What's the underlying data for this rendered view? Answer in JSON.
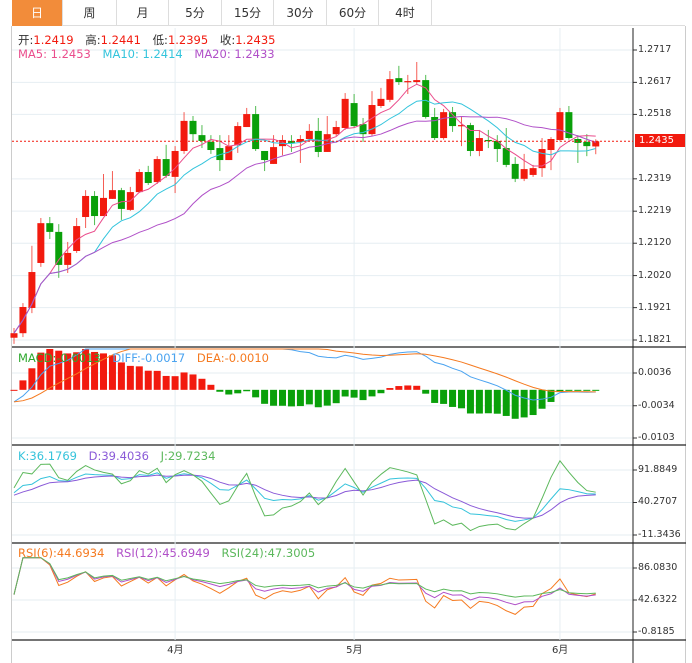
{
  "tabs": [
    {
      "label": "日",
      "active": true
    },
    {
      "label": "周"
    },
    {
      "label": "月"
    },
    {
      "label": "5分"
    },
    {
      "label": "15分"
    },
    {
      "label": "30分"
    },
    {
      "label": "60分"
    },
    {
      "label": "4时"
    }
  ],
  "ohlc_legend": {
    "open_label": "开:",
    "open": "1.2419",
    "high_label": "高:",
    "high": "1.2441",
    "low_label": "低:",
    "low": "1.2395",
    "close_label": "收:",
    "close": "1.2435"
  },
  "ma_legend": {
    "ma5": "MA5: 1.2453",
    "ma10": "MA10: 1.2414",
    "ma20": "MA20: 1.2433"
  },
  "macd_legend": {
    "macd": "MACD:-0.0013",
    "diff": "DIFF:-0.0017",
    "dea": "DEA:-0.0010"
  },
  "kdj_legend": {
    "k": "K:36.1769",
    "d": "D:39.4036",
    "j": "J:29.7234"
  },
  "rsi_legend": {
    "rsi6": "RSI(6):44.6934",
    "rsi12": "RSI(12):45.6949",
    "rsi24": "RSI(24):47.3005"
  },
  "last_price": "1.2435",
  "colors": {
    "up": "#f21a0e",
    "down": "#0aa00a",
    "ma5": "#ea4d8c",
    "ma10": "#33c4dc",
    "ma20": "#b050c8",
    "diff": "#4aa3f0",
    "dea": "#f57a20",
    "k": "#35c3db",
    "d": "#8a5ad8",
    "j": "#5cb85c",
    "rsi6": "#f57a20",
    "rsi12": "#b050c8",
    "rsi24": "#5cb85c",
    "active_tab": "#f28c3a"
  },
  "chart_data": {
    "type": "candlestick",
    "price_ticks": [
      "1.2717",
      "1.2617",
      "1.2518",
      "1.2319",
      "1.2219",
      "1.2120",
      "1.2020",
      "1.1921",
      "1.1821"
    ],
    "macd_ticks": [
      "0.0036",
      "-0.0034",
      "-0.0103"
    ],
    "kdj_ticks": [
      "91.8849",
      "40.2707",
      "-11.3436"
    ],
    "rsi_ticks": [
      "86.0830",
      "42.6322",
      "-0.8185"
    ],
    "x_labels": [
      {
        "label": "4月",
        "index": 18
      },
      {
        "label": "5月",
        "index": 38
      },
      {
        "label": "6月",
        "index": 61
      }
    ],
    "ylim": [
      1.1821,
      1.2717
    ],
    "candles": [
      [
        1.1828,
        1.1858,
        1.1809,
        1.1842
      ],
      [
        1.1842,
        1.1935,
        1.183,
        1.1923
      ],
      [
        1.192,
        1.2112,
        1.1904,
        1.2031
      ],
      [
        1.2059,
        1.2198,
        1.2047,
        1.2182
      ],
      [
        1.2182,
        1.2201,
        1.2133,
        1.2155
      ],
      [
        1.2155,
        1.2179,
        1.2013,
        1.2053
      ],
      [
        1.2053,
        1.2124,
        1.2028,
        1.209
      ],
      [
        1.2096,
        1.2198,
        1.209,
        1.2173
      ],
      [
        1.2201,
        1.2284,
        1.2167,
        1.2266
      ],
      [
        1.2266,
        1.2281,
        1.2176,
        1.2204
      ],
      [
        1.2204,
        1.2334,
        1.2204,
        1.226
      ],
      [
        1.2257,
        1.2343,
        1.2257,
        1.2284
      ],
      [
        1.2284,
        1.2291,
        1.2192,
        1.2226
      ],
      [
        1.2223,
        1.2294,
        1.222,
        1.2278
      ],
      [
        1.2278,
        1.2349,
        1.2275,
        1.234
      ],
      [
        1.234,
        1.2359,
        1.23,
        1.2306
      ],
      [
        1.2309,
        1.2389,
        1.2303,
        1.238
      ],
      [
        1.238,
        1.2424,
        1.2322,
        1.2328
      ],
      [
        1.2325,
        1.242,
        1.2275,
        1.2405
      ],
      [
        1.2405,
        1.2525,
        1.2396,
        1.2498
      ],
      [
        1.2498,
        1.2513,
        1.2433,
        1.2457
      ],
      [
        1.2454,
        1.2485,
        1.2414,
        1.2436
      ],
      [
        1.2433,
        1.2454,
        1.2396,
        1.2408
      ],
      [
        1.2414,
        1.2454,
        1.2343,
        1.2377
      ],
      [
        1.2377,
        1.2454,
        1.2377,
        1.242
      ],
      [
        1.2423,
        1.2494,
        1.2399,
        1.2482
      ],
      [
        1.2479,
        1.2538,
        1.2479,
        1.2519
      ],
      [
        1.2519,
        1.2544,
        1.2405,
        1.2411
      ],
      [
        1.2405,
        1.2405,
        1.2343,
        1.2377
      ],
      [
        1.2365,
        1.2454,
        1.2365,
        1.2417
      ],
      [
        1.242,
        1.2454,
        1.2392,
        1.2439
      ],
      [
        1.2436,
        1.2454,
        1.2402,
        1.243
      ],
      [
        1.2433,
        1.2454,
        1.2368,
        1.2442
      ],
      [
        1.2442,
        1.2488,
        1.2436,
        1.2467
      ],
      [
        1.2467,
        1.2507,
        1.2386,
        1.2402
      ],
      [
        1.2402,
        1.2513,
        1.2402,
        1.2457
      ],
      [
        1.2457,
        1.2498,
        1.2451,
        1.2479
      ],
      [
        1.2476,
        1.2584,
        1.247,
        1.2566
      ],
      [
        1.2553,
        1.2581,
        1.2476,
        1.2482
      ],
      [
        1.2488,
        1.2507,
        1.2433,
        1.2457
      ],
      [
        1.2457,
        1.259,
        1.2451,
        1.2547
      ],
      [
        1.2544,
        1.26,
        1.2538,
        1.2566
      ],
      [
        1.2563,
        1.2652,
        1.2556,
        1.2627
      ],
      [
        1.263,
        1.2668,
        1.2609,
        1.2618
      ],
      [
        1.2618,
        1.264,
        1.2581,
        1.2621
      ],
      [
        1.2618,
        1.268,
        1.2612,
        1.2624
      ],
      [
        1.2624,
        1.264,
        1.2505,
        1.251
      ],
      [
        1.251,
        1.2538,
        1.2439,
        1.2445
      ],
      [
        1.2445,
        1.2535,
        1.244,
        1.2525
      ],
      [
        1.2525,
        1.2541,
        1.2464,
        1.2482
      ],
      [
        1.2482,
        1.251,
        1.242,
        1.2485
      ],
      [
        1.2485,
        1.2492,
        1.2389,
        1.2405
      ],
      [
        1.2405,
        1.247,
        1.2389,
        1.2445
      ],
      [
        1.2439,
        1.247,
        1.2414,
        1.2436
      ],
      [
        1.2436,
        1.2454,
        1.2371,
        1.2411
      ],
      [
        1.2414,
        1.2476,
        1.2355,
        1.2362
      ],
      [
        1.2365,
        1.2386,
        1.2309,
        1.2319
      ],
      [
        1.2319,
        1.2396,
        1.2312,
        1.2349
      ],
      [
        1.2331,
        1.2362,
        1.2325,
        1.2352
      ],
      [
        1.2352,
        1.2445,
        1.2325,
        1.2411
      ],
      [
        1.2408,
        1.2448,
        1.2346,
        1.2442
      ],
      [
        1.2439,
        1.2538,
        1.2435,
        1.2525
      ],
      [
        1.2525,
        1.2544,
        1.244,
        1.2445
      ],
      [
        1.2442,
        1.2454,
        1.2368,
        1.243
      ],
      [
        1.2433,
        1.2457,
        1.2389,
        1.242
      ],
      [
        1.2419,
        1.2441,
        1.2395,
        1.2435
      ]
    ]
  }
}
